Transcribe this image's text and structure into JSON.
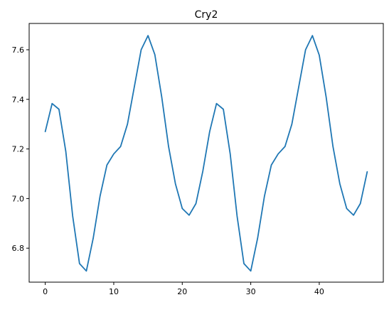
{
  "chart_data": {
    "type": "line",
    "title": "Cry2",
    "xlabel": "",
    "ylabel": "",
    "xlim": [
      -2.35,
      49.35
    ],
    "ylim": [
      6.663,
      7.706
    ],
    "grid": false,
    "legend": "none",
    "x_ticks": [
      0,
      10,
      20,
      30,
      40
    ],
    "x_tick_labels": [
      "0",
      "10",
      "20",
      "30",
      "40"
    ],
    "y_ticks": [
      6.8,
      7.0,
      7.2,
      7.4,
      7.6
    ],
    "y_tick_labels": [
      "6.8",
      "7.0",
      "7.2",
      "7.4",
      "7.6"
    ],
    "series": [
      {
        "color": "#1f77b4",
        "x": [
          0,
          1,
          2,
          3,
          4,
          5,
          6,
          7,
          8,
          9,
          10,
          11,
          12,
          13,
          14,
          15,
          16,
          17,
          18,
          19,
          20,
          21,
          22,
          23,
          24,
          25,
          26,
          27,
          28,
          29,
          30,
          31,
          32,
          33,
          34,
          35,
          36,
          37,
          38,
          39,
          40,
          41,
          42,
          43,
          44,
          45,
          46,
          47
        ],
        "values": [
          7.27,
          7.383,
          7.36,
          7.19,
          6.93,
          6.738,
          6.708,
          6.84,
          7.01,
          7.135,
          7.18,
          7.21,
          7.3,
          7.45,
          7.6,
          7.657,
          7.58,
          7.41,
          7.21,
          7.06,
          6.96,
          6.933,
          6.98,
          7.11,
          7.27,
          7.383,
          7.36,
          7.18,
          6.93,
          6.738,
          6.708,
          6.84,
          7.01,
          7.135,
          7.18,
          7.21,
          7.3,
          7.45,
          7.6,
          7.657,
          7.578,
          7.41,
          7.21,
          7.06,
          6.96,
          6.933,
          6.98,
          7.108
        ]
      }
    ]
  }
}
